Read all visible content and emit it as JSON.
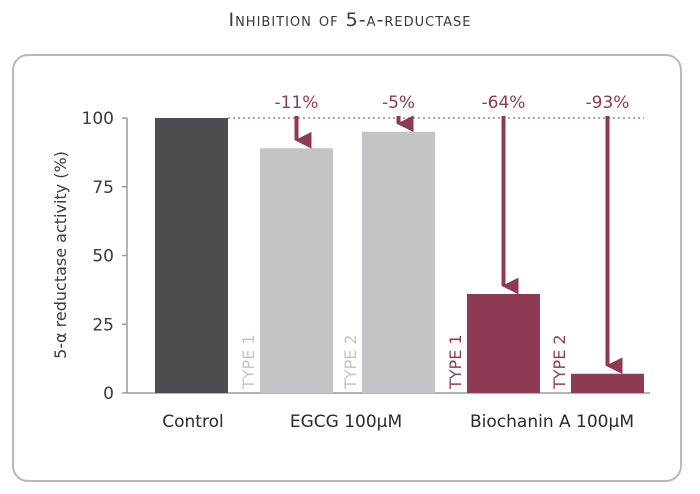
{
  "chart_data": {
    "type": "bar",
    "title": "Inhibition of 5-α-reductase",
    "ylabel": "5-α reductase activity (%)",
    "ylim": [
      0,
      100
    ],
    "yticks": [
      "0",
      "25",
      "50",
      "75",
      "100"
    ],
    "groups": [
      "Control",
      "EGCG 100µM",
      "Biochanin A 100µM"
    ],
    "bars": [
      {
        "group": "Control",
        "subtype": "",
        "value": 100,
        "change_label": "",
        "color": "#4d4d4f",
        "type_color": "#c4c4c6"
      },
      {
        "group": "EGCG 100µM",
        "subtype": "TYPE 1",
        "value": 89,
        "change_label": "-11%",
        "color": "#c4c4c6",
        "type_color": "#c4c4c6"
      },
      {
        "group": "EGCG 100µM",
        "subtype": "TYPE 2",
        "value": 95,
        "change_label": "-5%",
        "color": "#c4c4c6",
        "type_color": "#c4c4c6"
      },
      {
        "group": "Biochanin A 100µM",
        "subtype": "TYPE 1",
        "value": 36,
        "change_label": "-64%",
        "color": "#8e3a52",
        "type_color": "#8e3a52"
      },
      {
        "group": "Biochanin A 100µM",
        "subtype": "TYPE 2",
        "value": 7,
        "change_label": "-93%",
        "color": "#8e3a52",
        "type_color": "#8e3a52"
      }
    ],
    "reference_line": 100,
    "arrow_color": "#8e3a52",
    "grid": false
  }
}
